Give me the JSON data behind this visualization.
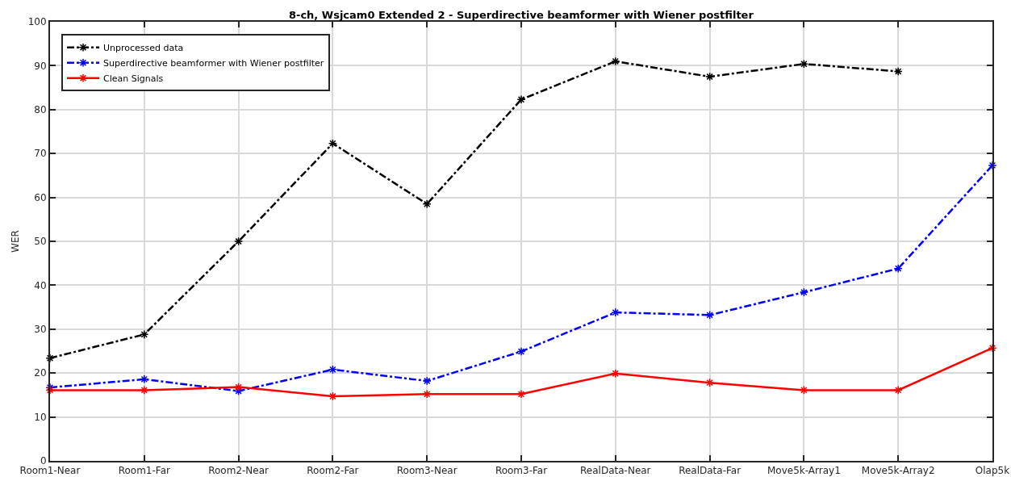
{
  "chart_data": {
    "type": "line",
    "title": "8-ch, Wsjcam0 Extended 2 - Superdirective beamformer with Wiener postfilter",
    "ylabel": "WER",
    "categories": [
      "Room1-Near",
      "Room1-Far",
      "Room2-Near",
      "Room2-Far",
      "Room3-Near",
      "Room3-Far",
      "RealData-Near",
      "RealData-Far",
      "Move5k-Array1",
      "Move5k-Array2",
      "Olap5k"
    ],
    "series": [
      {
        "name": "Unprocessed data",
        "color": "#000000",
        "line_style": "dashdot",
        "values": [
          23.4,
          28.8,
          50.0,
          72.3,
          58.5,
          82.3,
          91.0,
          87.5,
          90.4,
          88.7,
          null
        ]
      },
      {
        "name": "Superdirective beamformer with Wiener postfilter",
        "color": "#0000ff",
        "line_style": "dashdot",
        "values": [
          16.7,
          18.6,
          15.9,
          20.8,
          18.2,
          24.9,
          33.8,
          33.2,
          38.4,
          43.8,
          67.3
        ]
      },
      {
        "name": "Clean Signals",
        "color": "#ff0000",
        "line_style": "solid",
        "values": [
          16.1,
          16.1,
          16.8,
          14.7,
          15.2,
          15.2,
          19.9,
          17.8,
          16.1,
          16.1,
          25.7
        ]
      }
    ],
    "ylim": [
      0,
      100
    ],
    "yticks": [
      0,
      10,
      20,
      30,
      40,
      50,
      60,
      70,
      80,
      90,
      100
    ],
    "grid": true,
    "legend": "top left",
    "marker": "cross"
  }
}
